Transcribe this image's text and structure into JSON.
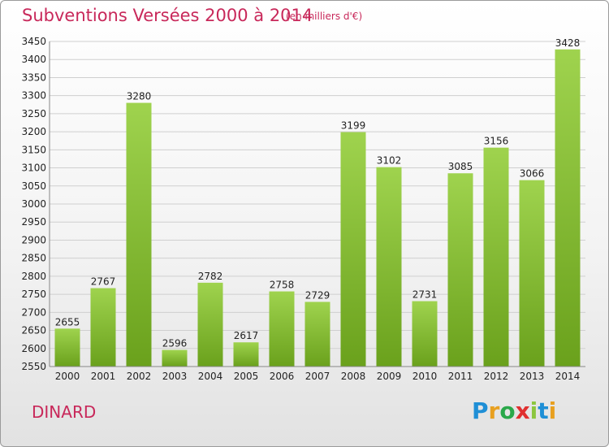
{
  "chart_data": {
    "type": "bar",
    "title": "Subventions Versées 2000 à 2014",
    "subtitle": "(en milliers d'€)",
    "categories": [
      "2000",
      "2001",
      "2002",
      "2003",
      "2004",
      "2005",
      "2006",
      "2007",
      "2008",
      "2009",
      "2010",
      "2011",
      "2012",
      "2013",
      "2014"
    ],
    "values": [
      2655,
      2767,
      3280,
      2596,
      2782,
      2617,
      2758,
      2729,
      3199,
      3102,
      2731,
      3085,
      3156,
      3066,
      3428
    ],
    "ylim": [
      2550,
      3450
    ],
    "ytick_step": 50,
    "grid": true,
    "bar_color": "#8cc63f"
  },
  "city": "DINARD",
  "logo": {
    "letters": [
      "P",
      "r",
      "o",
      "x",
      "i",
      "t",
      "i"
    ],
    "colors": [
      "#1f8fd6",
      "#e8a020",
      "#2aa84a",
      "#e03030",
      "#8cc63f",
      "#1f8fd6",
      "#e8a020"
    ]
  }
}
